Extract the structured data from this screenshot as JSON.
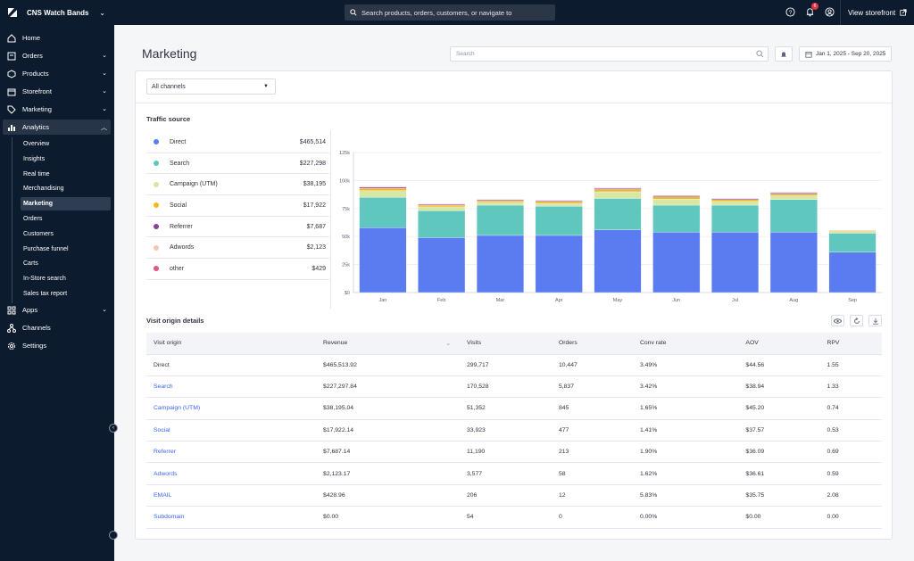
{
  "topbar": {
    "store_name": "CNS Watch Bands",
    "search_placeholder": "Search products, orders, customers, or navigate to",
    "notification_count": "6",
    "view_storefront": "View storefront"
  },
  "sidebar": {
    "items": [
      {
        "label": "Home",
        "icon": "home-icon",
        "chevron": false
      },
      {
        "label": "Orders",
        "icon": "orders-icon",
        "chevron": true
      },
      {
        "label": "Products",
        "icon": "products-icon",
        "chevron": true
      },
      {
        "label": "Storefront",
        "icon": "storefront-icon",
        "chevron": true
      },
      {
        "label": "Marketing",
        "icon": "tag-icon",
        "chevron": true
      },
      {
        "label": "Analytics",
        "icon": "bar-chart-icon",
        "chevron": true
      }
    ],
    "analytics_sub": [
      "Overview",
      "Insights",
      "Real time",
      "Merchandising",
      "Marketing",
      "Orders",
      "Customers",
      "Purchase funnel",
      "Carts",
      "In-Store search",
      "Sales tax report"
    ],
    "active_sub": "Marketing",
    "bottom_items": [
      {
        "label": "Apps",
        "icon": "apps-icon",
        "chevron": true
      },
      {
        "label": "Channels",
        "icon": "channels-icon",
        "chevron": false
      },
      {
        "label": "Settings",
        "icon": "gear-icon",
        "chevron": false
      }
    ]
  },
  "page": {
    "title": "Marketing",
    "search_placeholder": "Search",
    "date_range": "Jan 1, 2025 - Sep 20, 2025",
    "channel_filter": "All channels"
  },
  "traffic": {
    "heading": "Traffic source",
    "sources": [
      {
        "name": "Direct",
        "value": "$465,514",
        "color": "#5b7cf0"
      },
      {
        "name": "Search",
        "value": "$227,298",
        "color": "#5fc7be"
      },
      {
        "name": "Campaign (UTM)",
        "value": "$38,195",
        "color": "#d8e7a6"
      },
      {
        "name": "Social",
        "value": "$17,922",
        "color": "#f1b81c"
      },
      {
        "name": "Referrer",
        "value": "$7,687",
        "color": "#8a3f9c"
      },
      {
        "name": "Adwords",
        "value": "$2,123",
        "color": "#f5c6b0"
      },
      {
        "name": "other",
        "value": "$429",
        "color": "#e0577f"
      }
    ]
  },
  "chart_data": {
    "type": "bar",
    "stacked": true,
    "categories": [
      "Jan",
      "Feb",
      "Mar",
      "Apr",
      "May",
      "Jun",
      "Jul",
      "Aug",
      "Sep"
    ],
    "y_ticks": [
      "$0",
      "25k",
      "50k",
      "75k",
      "100k",
      "125k"
    ],
    "ylim": [
      0,
      125000
    ],
    "grid": true,
    "series": [
      {
        "name": "Direct",
        "values": [
          58000,
          49000,
          51000,
          51000,
          56000,
          54000,
          54000,
          54000,
          36000
        ]
      },
      {
        "name": "Search",
        "values": [
          27000,
          24000,
          27000,
          26000,
          28000,
          24000,
          24000,
          29000,
          17000
        ]
      },
      {
        "name": "Campaign (UTM)",
        "values": [
          6000,
          3500,
          2500,
          2500,
          6000,
          5500,
          3500,
          3500,
          1500
        ]
      },
      {
        "name": "Social",
        "values": [
          2000,
          1500,
          1500,
          1500,
          2000,
          2000,
          1500,
          1500,
          800
        ]
      },
      {
        "name": "Referrer",
        "values": [
          1000,
          800,
          800,
          800,
          1000,
          900,
          800,
          900,
          400
        ]
      },
      {
        "name": "Adwords",
        "values": [
          600,
          400,
          400,
          400,
          500,
          500,
          400,
          400,
          200
        ]
      },
      {
        "name": "other",
        "values": [
          300,
          200,
          200,
          200,
          300,
          200,
          200,
          300,
          100
        ]
      }
    ]
  },
  "details": {
    "heading": "Visit origin details",
    "columns": [
      "Visit origin",
      "Revenue",
      "Visits",
      "Orders",
      "Conv rate",
      "AOV",
      "RPV"
    ],
    "rows": [
      {
        "origin": "Direct",
        "revenue": "$465,513.92",
        "visits": "299,717",
        "orders": "10,447",
        "conv": "3.49%",
        "aov": "$44.56",
        "rpv": "1.55",
        "link": false
      },
      {
        "origin": "Search",
        "revenue": "$227,297.84",
        "visits": "170,528",
        "orders": "5,837",
        "conv": "3.42%",
        "aov": "$38.94",
        "rpv": "1.33",
        "link": true
      },
      {
        "origin": "Campaign (UTM)",
        "revenue": "$38,195.04",
        "visits": "51,352",
        "orders": "845",
        "conv": "1.65%",
        "aov": "$45.20",
        "rpv": "0.74",
        "link": true
      },
      {
        "origin": "Social",
        "revenue": "$17,922.14",
        "visits": "33,923",
        "orders": "477",
        "conv": "1.41%",
        "aov": "$37.57",
        "rpv": "0.53",
        "link": true
      },
      {
        "origin": "Referrer",
        "revenue": "$7,687.14",
        "visits": "11,190",
        "orders": "213",
        "conv": "1.90%",
        "aov": "$36.09",
        "rpv": "0.69",
        "link": true
      },
      {
        "origin": "Adwords",
        "revenue": "$2,123.17",
        "visits": "3,577",
        "orders": "58",
        "conv": "1.62%",
        "aov": "$36.61",
        "rpv": "0.59",
        "link": true
      },
      {
        "origin": "EMAIL",
        "revenue": "$428.96",
        "visits": "206",
        "orders": "12",
        "conv": "5.83%",
        "aov": "$35.75",
        "rpv": "2.08",
        "link": true
      },
      {
        "origin": "Subdomain",
        "revenue": "$0.00",
        "visits": "54",
        "orders": "0",
        "conv": "0.00%",
        "aov": "$0.00",
        "rpv": "0.00",
        "link": true
      }
    ]
  }
}
